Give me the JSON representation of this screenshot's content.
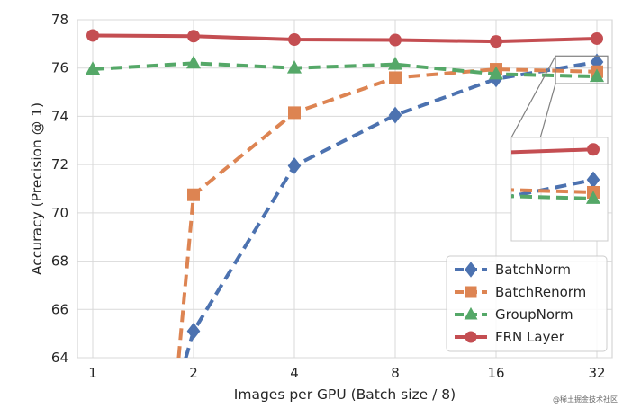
{
  "watermark": "@稀土掘金技术社区",
  "chart_data": {
    "type": "line",
    "x": [
      1,
      2,
      4,
      8,
      16,
      32
    ],
    "xticklabels": [
      "1",
      "2",
      "4",
      "8",
      "16",
      "32"
    ],
    "xscale": "log2",
    "xlabel": "Images per GPU (Batch size / 8)",
    "ylabel": "Accuracy (Precision @ 1)",
    "ylim": [
      64,
      78
    ],
    "yticks": [
      64,
      66,
      68,
      70,
      72,
      74,
      76,
      78
    ],
    "grid": true,
    "legend_position": "lower-right",
    "series": [
      {
        "name": "BatchNorm",
        "color": "#4c72b0",
        "marker": "diamond",
        "linestyle": "dashed",
        "values": [
          null,
          65.1,
          71.95,
          74.05,
          75.55,
          76.25
        ],
        "entry_from_below": true
      },
      {
        "name": "BatchRenorm",
        "color": "#dd8452",
        "marker": "square",
        "linestyle": "dashed",
        "values": [
          null,
          70.75,
          74.15,
          75.6,
          75.95,
          75.85
        ],
        "entry_from_below": true
      },
      {
        "name": "GroupNorm",
        "color": "#55a868",
        "marker": "triangle",
        "linestyle": "dashed",
        "values": [
          75.95,
          76.2,
          76.0,
          76.15,
          75.75,
          75.65
        ]
      },
      {
        "name": "FRN Layer",
        "color": "#c44e52",
        "marker": "circle",
        "linestyle": "solid",
        "values": [
          77.35,
          77.32,
          77.18,
          77.16,
          77.1,
          77.22
        ]
      }
    ],
    "inset": {
      "zoom_of": "x 16-32 near top-right",
      "x": [
        16,
        32
      ]
    }
  }
}
